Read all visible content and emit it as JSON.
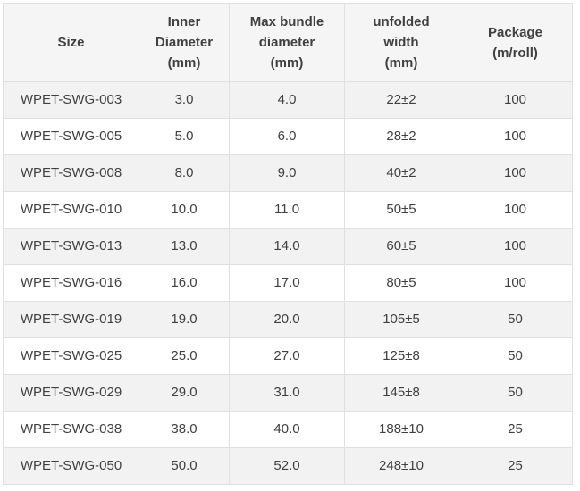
{
  "chart_data": {
    "type": "table",
    "columns": [
      {
        "key": "size",
        "label": "Size"
      },
      {
        "key": "inner-diameter",
        "label": "Inner\nDiameter\n(mm)"
      },
      {
        "key": "max-bundle-diameter",
        "label": "Max bundle\ndiameter\n(mm)"
      },
      {
        "key": "unfolded-width",
        "label": "unfolded\nwidth\n(mm)"
      },
      {
        "key": "package",
        "label": "Package\n(m/roll)"
      }
    ],
    "rows": [
      [
        "WPET-SWG-003",
        "3.0",
        "4.0",
        "22±2",
        "100"
      ],
      [
        "WPET-SWG-005",
        "5.0",
        "6.0",
        "28±2",
        "100"
      ],
      [
        "WPET-SWG-008",
        "8.0",
        "9.0",
        "40±2",
        "100"
      ],
      [
        "WPET-SWG-010",
        "10.0",
        "11.0",
        "50±5",
        "100"
      ],
      [
        "WPET-SWG-013",
        "13.0",
        "14.0",
        "60±5",
        "100"
      ],
      [
        "WPET-SWG-016",
        "16.0",
        "17.0",
        "80±5",
        "100"
      ],
      [
        "WPET-SWG-019",
        "19.0",
        "20.0",
        "105±5",
        "50"
      ],
      [
        "WPET-SWG-025",
        "25.0",
        "27.0",
        "125±8",
        "50"
      ],
      [
        "WPET-SWG-029",
        "29.0",
        "31.0",
        "145±8",
        "50"
      ],
      [
        "WPET-SWG-038",
        "38.0",
        "40.0",
        "188±10",
        "25"
      ],
      [
        "WPET-SWG-050",
        "50.0",
        "52.0",
        "248±10",
        "25"
      ]
    ],
    "colors": {
      "header_bg": "#f5f5f5",
      "stripe_bg": "#f2f2f2",
      "row_bg": "#ffffff",
      "border": "#e0e0e0",
      "text": "#404040",
      "page_bg": "#ffffff"
    },
    "layout_hints": {
      "grid": "on",
      "stripe_pattern": "odd-rows-gray",
      "cell_alignment": "center"
    }
  }
}
